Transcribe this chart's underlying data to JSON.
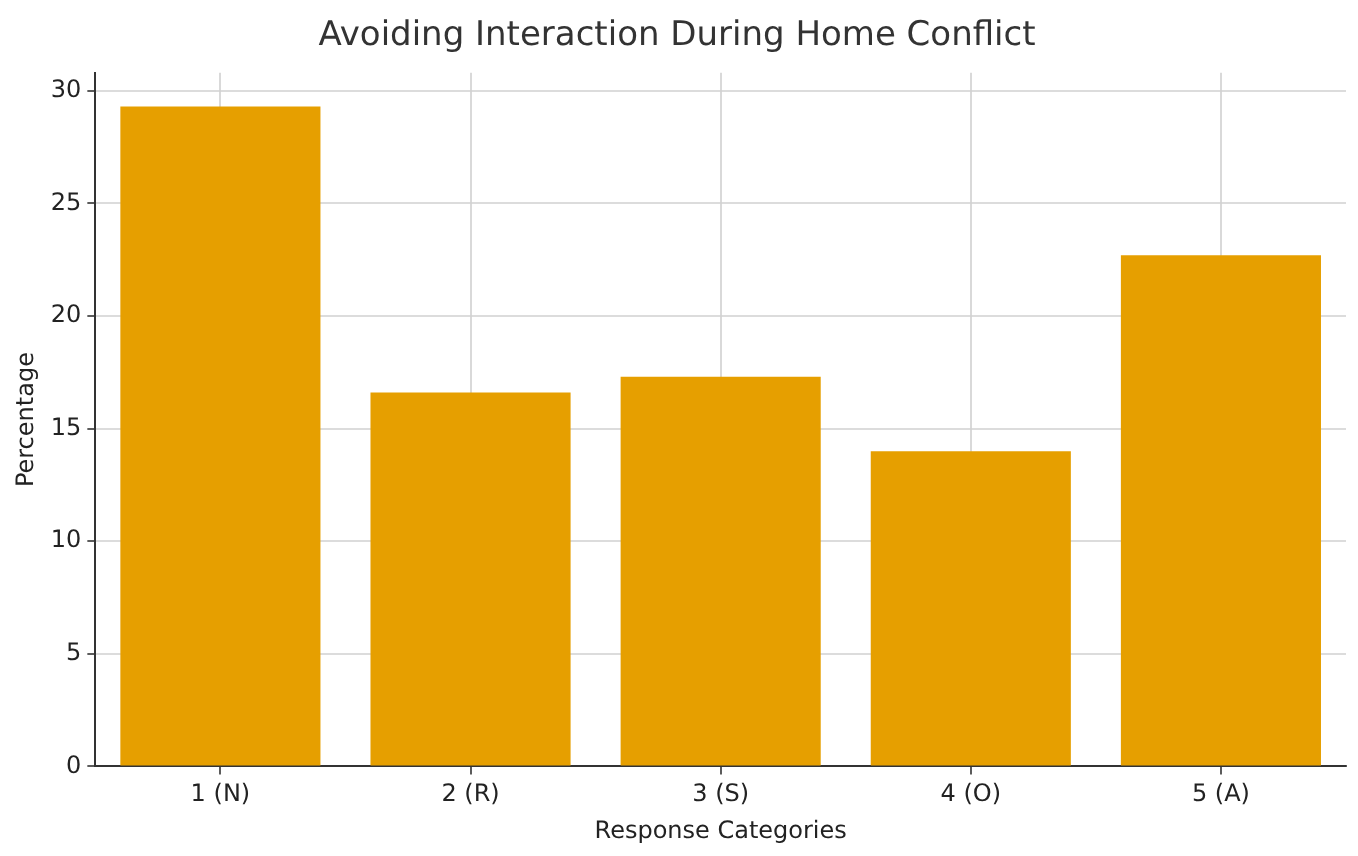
{
  "chart_data": {
    "type": "bar",
    "title": "Avoiding Interaction During Home Conflict",
    "xlabel": "Response Categories",
    "ylabel": "Percentage",
    "categories": [
      "1 (N)",
      "2 (R)",
      "3 (S)",
      "4 (O)",
      "5 (A)"
    ],
    "values": [
      29.3,
      16.6,
      17.3,
      14.0,
      22.7
    ],
    "color": "#e69f00",
    "ylim": [
      0,
      30.8
    ],
    "yticks": [
      0,
      5,
      10,
      15,
      20,
      25,
      30
    ],
    "grid": true
  }
}
